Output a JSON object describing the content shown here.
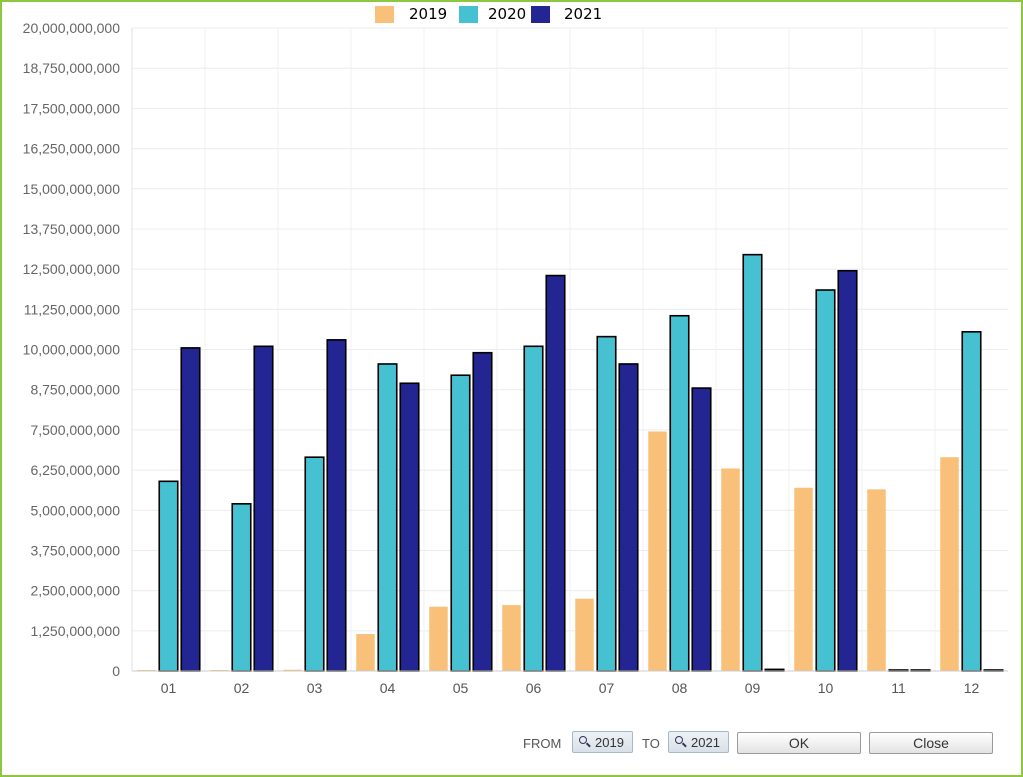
{
  "chart_data": {
    "type": "bar",
    "categories": [
      "01",
      "02",
      "03",
      "04",
      "05",
      "06",
      "07",
      "08",
      "09",
      "10",
      "11",
      "12"
    ],
    "series": [
      {
        "name": "2019",
        "color": "#f9c07a",
        "values": [
          15000000,
          15000000,
          40000000,
          1150000000,
          2000000000,
          2050000000,
          2250000000,
          7450000000,
          6300000000,
          5700000000,
          5650000000,
          6650000000
        ]
      },
      {
        "name": "2020",
        "color": "#46c1d2",
        "values": [
          5900000000,
          5200000000,
          6650000000,
          9550000000,
          9200000000,
          10100000000,
          10400000000,
          11050000000,
          12950000000,
          11850000000,
          10000000,
          10550000000
        ]
      },
      {
        "name": "2021",
        "color": "#222592",
        "values": [
          10050000000,
          10100000000,
          10300000000,
          8950000000,
          9900000000,
          12300000000,
          9550000000,
          8800000000,
          50000000,
          12450000000,
          10000000,
          10000000
        ]
      }
    ],
    "y_ticks": [
      "0",
      "1,250,000,000",
      "2,500,000,000",
      "3,750,000,000",
      "5,000,000,000",
      "6,250,000,000",
      "7,500,000,000",
      "8,750,000,000",
      "10,000,000,000",
      "11,250,000,000",
      "12,500,000,000",
      "13,750,000,000",
      "15,000,000,000",
      "16,250,000,000",
      "17,500,000,000",
      "18,750,000,000",
      "20,000,000,000"
    ],
    "ylim": [
      0,
      20000000000
    ],
    "grid": true,
    "legend_position": "top"
  },
  "controls": {
    "from_label": "FROM",
    "from_value": "2019",
    "to_label": "TO",
    "to_value": "2021",
    "ok_label": "OK",
    "close_label": "Close",
    "search_icon": "magnifier-icon"
  }
}
